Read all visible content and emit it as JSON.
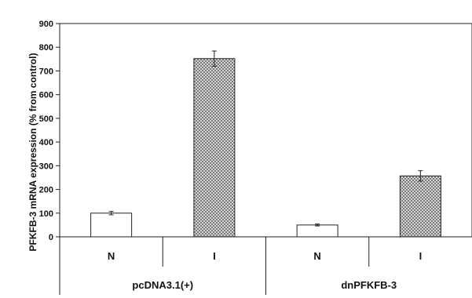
{
  "chart_data": {
    "type": "bar",
    "title": "",
    "xlabel": "",
    "ylabel": "PFKFB-3 mRNA expression (% from control)",
    "ylim": [
      0,
      900
    ],
    "yticks": [
      0,
      100,
      200,
      300,
      400,
      500,
      600,
      700,
      800,
      900
    ],
    "grid": false,
    "legend": "none",
    "groups": [
      {
        "label": "pcDNA3.1(+)",
        "bars": [
          {
            "category": "N",
            "value": 100,
            "error": 7,
            "pattern": "open"
          },
          {
            "category": "I",
            "value": 752,
            "error": 32,
            "pattern": "crosshatch"
          }
        ]
      },
      {
        "label": "dnPFKFB-3",
        "bars": [
          {
            "category": "N",
            "value": 50,
            "error": 4,
            "pattern": "open"
          },
          {
            "category": "I",
            "value": 257,
            "error": 22,
            "pattern": "crosshatch"
          }
        ]
      }
    ],
    "colors": {
      "bar_fill_open": "#ffffff",
      "bar_stroke": "#222222",
      "hatch": "#555555",
      "hatch_bg": "#e8e8e8"
    }
  }
}
